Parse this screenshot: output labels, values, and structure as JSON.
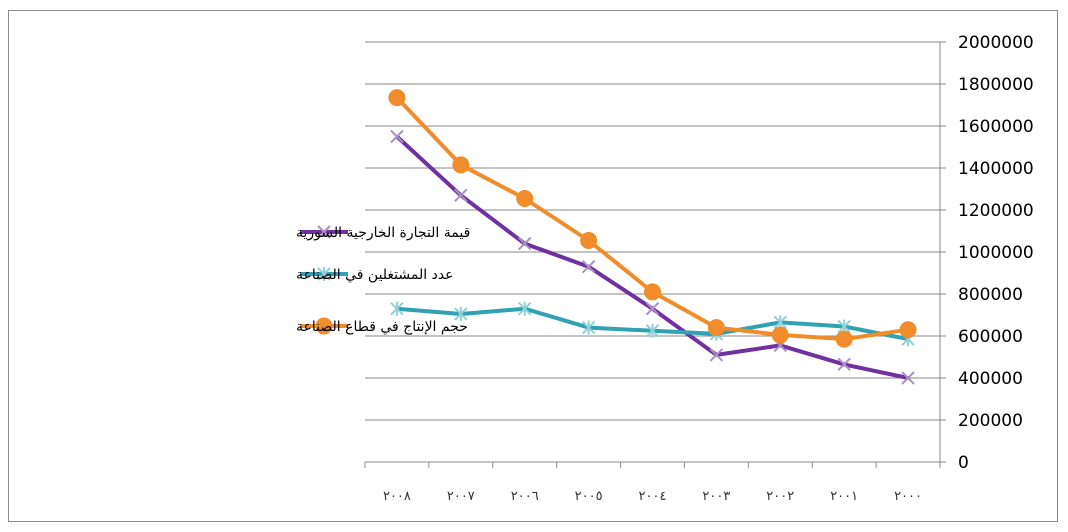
{
  "chart_data": {
    "type": "line",
    "categories": [
      "٢٠٠٨",
      "٢٠٠٧",
      "٢٠٠٦",
      "٢٠٠٥",
      "٢٠٠٤",
      "٢٠٠٣",
      "٢٠٠٢",
      "٢٠٠١",
      "٢٠٠٠"
    ],
    "series": [
      {
        "name": "قيمة التجارة الخارجية السورية",
        "color": "#7030a0",
        "marker": "x",
        "values": [
          1550000,
          1270000,
          1040000,
          930000,
          730000,
          510000,
          555000,
          465000,
          400000
        ]
      },
      {
        "name": "عدد المشتغلين في الصناعة",
        "color": "#31a2b3",
        "marker": "star",
        "values": [
          730000,
          705000,
          730000,
          640000,
          625000,
          610000,
          665000,
          645000,
          585000
        ]
      },
      {
        "name": "حجم الإنتاج في قطاع الصناعة",
        "color": "#f08c2a",
        "marker": "circle",
        "values": [
          1735000,
          1415000,
          1255000,
          1055000,
          810000,
          640000,
          605000,
          585000,
          630000
        ]
      }
    ],
    "yticks": [
      0,
      200000,
      400000,
      600000,
      800000,
      1000000,
      1200000,
      1400000,
      1600000,
      1800000,
      2000000
    ],
    "ylim": [
      0,
      2000000
    ],
    "yaxis_position": "right",
    "grid": true,
    "legend_position": "left"
  }
}
